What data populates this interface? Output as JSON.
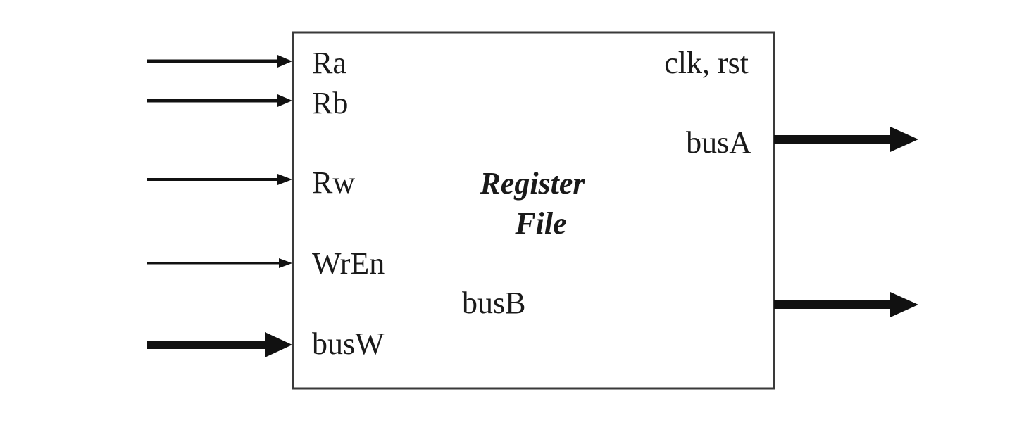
{
  "block": {
    "title_line1": "Register",
    "title_line2": "File"
  },
  "inputs": [
    {
      "name": "input-ra",
      "label": "Ra",
      "weight": "medium"
    },
    {
      "name": "input-rb",
      "label": "Rb",
      "weight": "medium"
    },
    {
      "name": "input-rw",
      "label": "Rw",
      "weight": "medium"
    },
    {
      "name": "input-wren",
      "label": "WrEn",
      "weight": "thin"
    },
    {
      "name": "input-busw",
      "label": "busW",
      "weight": "bus"
    }
  ],
  "control": {
    "label": "clk, rst"
  },
  "outputs": [
    {
      "name": "output-busa",
      "label": "busA",
      "weight": "bus"
    },
    {
      "name": "output-busb",
      "label": "busB",
      "weight": "bus"
    }
  ]
}
